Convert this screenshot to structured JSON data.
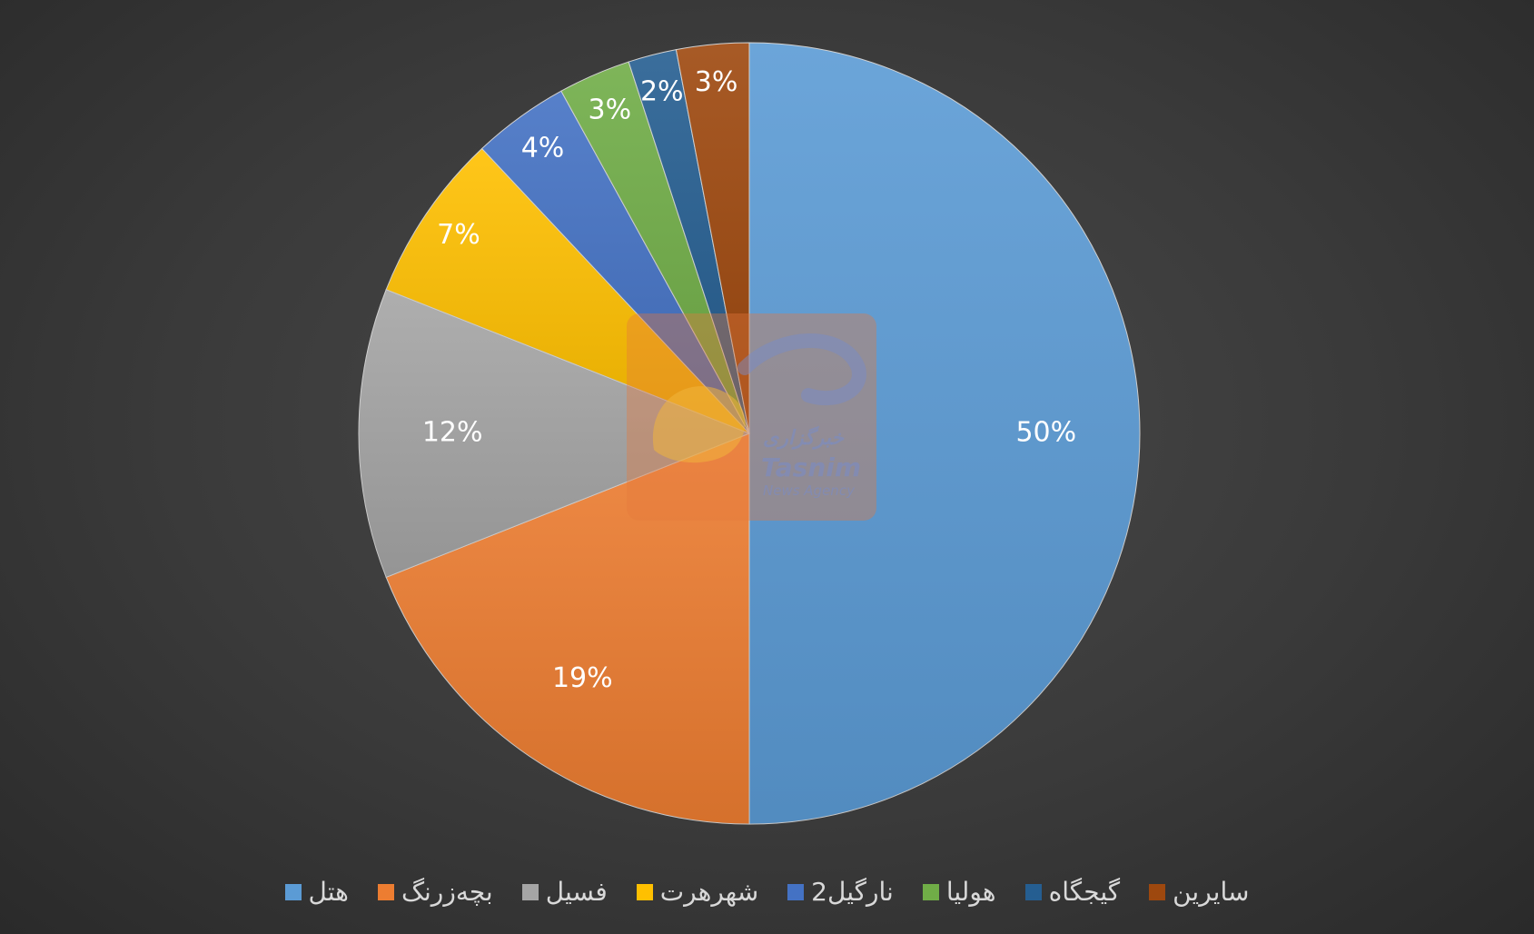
{
  "chart_data": {
    "type": "pie",
    "title": "",
    "slices": [
      {
        "label": "هتل",
        "value": 50,
        "display": "50%",
        "color": "#5b9bd5"
      },
      {
        "label": "بچه‌زرنگ",
        "value": 19,
        "display": "19%",
        "color": "#ed7d31"
      },
      {
        "label": "فسیل",
        "value": 12,
        "display": "12%",
        "color": "#a5a5a5"
      },
      {
        "label": "شهرهرت",
        "value": 7,
        "display": "7%",
        "color": "#ffc000"
      },
      {
        "label": "نارگیل2",
        "value": 4,
        "display": "4%",
        "color": "#4472c4"
      },
      {
        "label": "هولیا",
        "value": 3,
        "display": "3%",
        "color": "#70ad47"
      },
      {
        "label": "گیجگاه",
        "value": 2,
        "display": "2%",
        "color": "#255e91"
      },
      {
        "label": "سایرین",
        "value": 3,
        "display": "3%",
        "color": "#9e480e"
      }
    ],
    "start_angle": "12 o'clock",
    "direction": "clockwise",
    "legend_position": "bottom"
  },
  "watermark": {
    "text_fa": "خبرگزاری",
    "text_en": "Tasnim",
    "text_sub": "News Agency"
  }
}
